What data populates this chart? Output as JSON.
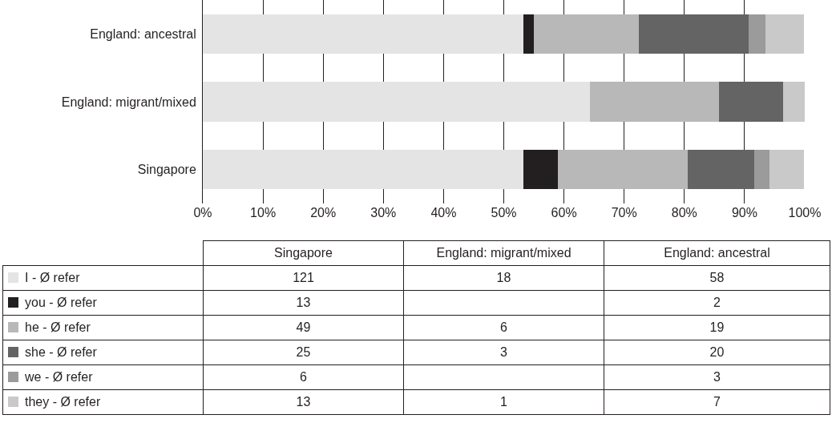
{
  "chart_data": [
    {
      "type": "bar",
      "orientation": "horizontal",
      "stacked": true,
      "categories": [
        "England: ancestral",
        "England: migrant/mixed",
        "Singapore"
      ],
      "series": [
        {
          "color": "#e4e4e4",
          "values": [
            53.2,
            64.3,
            53.3
          ]
        },
        {
          "color": "#231f20",
          "values": [
            1.8,
            null,
            5.7
          ]
        },
        {
          "color": "#b8b8b8",
          "values": [
            17.4,
            21.4,
            21.6
          ]
        },
        {
          "color": "#646464",
          "values": [
            18.3,
            10.7,
            11.0
          ]
        },
        {
          "color": "#9b9b9b",
          "values": [
            2.8,
            null,
            2.6
          ]
        },
        {
          "color": "#c9c9c9",
          "values": [
            6.4,
            3.6,
            5.7
          ]
        }
      ],
      "xlim": [
        0,
        100
      ],
      "xticks": [
        {
          "value": 0,
          "label": "0%"
        },
        {
          "value": 10,
          "label": "10%"
        },
        {
          "value": 20,
          "label": "20%"
        },
        {
          "value": 30,
          "label": "30%"
        },
        {
          "value": 40,
          "label": "40%"
        },
        {
          "value": 50,
          "label": "50%"
        },
        {
          "value": 60,
          "label": "60%"
        },
        {
          "value": 70,
          "label": "70%"
        },
        {
          "value": 80,
          "label": "80%"
        },
        {
          "value": 90,
          "label": "90%"
        },
        {
          "value": 100,
          "label": "100%"
        }
      ],
      "grid": "x"
    },
    {
      "type": "other",
      "categories": [
        "Singapore",
        "England: migrant/mixed",
        "England: ancestral"
      ],
      "series": [
        {
          "name": "I - Ø refer",
          "color": "#e4e4e4",
          "values": [
            121,
            18,
            58
          ]
        },
        {
          "name": "you - Ø refer",
          "color": "#231f20",
          "values": [
            13,
            null,
            2
          ]
        },
        {
          "name": "he - Ø refer",
          "color": "#b8b8b8",
          "values": [
            49,
            6,
            19
          ]
        },
        {
          "name": "she - Ø refer",
          "color": "#646464",
          "values": [
            25,
            3,
            20
          ]
        },
        {
          "name": "we - Ø refer",
          "color": "#9b9b9b",
          "values": [
            6,
            null,
            3
          ]
        },
        {
          "name": "they - Ø refer",
          "color": "#c9c9c9",
          "values": [
            13,
            1,
            7
          ]
        }
      ],
      "data_labels": true
    }
  ]
}
